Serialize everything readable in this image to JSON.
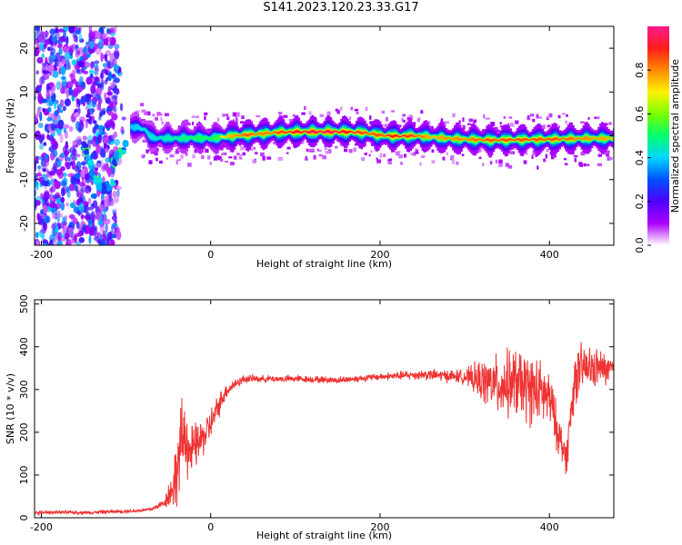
{
  "title": "S141.2023.120.23.33.G17",
  "chart_data": [
    {
      "type": "heatmap",
      "xlabel": "Height of straight line (km)",
      "ylabel": "Frequency (Hz)",
      "xlim": [
        -208,
        476
      ],
      "ylim": [
        -25,
        25
      ],
      "xticks": [
        "-200",
        "0",
        "200",
        "400"
      ],
      "xtick_values": [
        -200,
        0,
        200,
        400
      ],
      "yticks": [
        "-20",
        "-10",
        "0",
        "10",
        "20"
      ],
      "ytick_values": [
        -20,
        -10,
        0,
        10,
        20
      ],
      "colorbar": {
        "label": "Normalized spectral amplitude",
        "range": [
          0,
          1
        ],
        "ticks": [
          "0.0",
          "0.2",
          "0.4",
          "0.6",
          "0.8"
        ],
        "tick_values": [
          0.0,
          0.2,
          0.4,
          0.6,
          0.8
        ],
        "colormap": [
          "#ffffff",
          "#ad00ff",
          "#5000ff",
          "#0050ff",
          "#00d7ff",
          "#00ff6e",
          "#7aff00",
          "#fff200",
          "#ff8a00",
          "#ff1c1c",
          "#ff1a8a"
        ]
      },
      "ridge": {
        "x": [
          -90,
          -80,
          -70,
          -40,
          -20,
          0,
          20,
          40,
          60,
          80,
          100,
          120,
          140,
          160,
          180,
          200,
          220,
          240,
          260,
          280,
          300,
          330,
          360,
          400,
          440,
          476
        ],
        "y": [
          2,
          1.5,
          -0.5,
          -0.6,
          -0.5,
          -0.6,
          -0.1,
          0.2,
          0.5,
          0.8,
          0.9,
          0.9,
          0.9,
          0.9,
          0.7,
          0.1,
          -0.1,
          0,
          -0.3,
          -0.6,
          -0.8,
          -1.0,
          -0.9,
          -0.8,
          -0.6,
          -0.6
        ],
        "amplitude": [
          0.5,
          0.55,
          0.55,
          0.6,
          0.65,
          0.65,
          0.75,
          0.85,
          0.8,
          0.85,
          0.9,
          0.95,
          0.95,
          0.9,
          0.85,
          0.85,
          0.9,
          0.85,
          0.75,
          0.8,
          0.8,
          0.85,
          0.85,
          0.85,
          0.8,
          0.75
        ]
      }
    },
    {
      "type": "line",
      "xlabel": "Height of straight line (km)",
      "ylabel": "SNR (10 * v/v)",
      "xlim": [
        -208,
        476
      ],
      "ylim": [
        0,
        510
      ],
      "xticks": [
        "-200",
        "0",
        "200",
        "400"
      ],
      "xtick_values": [
        -200,
        0,
        200,
        400
      ],
      "yticks": [
        "0",
        "100",
        "200",
        "300",
        "400",
        "500"
      ],
      "ytick_values": [
        0,
        100,
        200,
        300,
        400,
        500
      ],
      "color": "#ee3333",
      "series": [
        {
          "x": [
            -208,
            -180,
            -150,
            -120,
            -90,
            -70,
            -55,
            -45,
            -40,
            -35,
            -30,
            -25,
            -20,
            -15,
            -10,
            -5,
            0,
            5,
            10,
            15,
            20,
            30,
            40,
            60,
            80,
            100,
            150,
            200,
            250,
            300,
            320,
            340,
            360,
            380,
            400,
            410,
            420,
            430,
            440,
            460,
            476
          ],
          "y": [
            12,
            13,
            12,
            14,
            16,
            20,
            35,
            70,
            110,
            170,
            200,
            150,
            160,
            175,
            185,
            200,
            220,
            240,
            265,
            285,
            300,
            315,
            325,
            325,
            325,
            325,
            322,
            330,
            335,
            330,
            320,
            310,
            315,
            300,
            280,
            200,
            140,
            330,
            350,
            350,
            345
          ],
          "spread": [
            5,
            5,
            5,
            5,
            5,
            6,
            12,
            60,
            100,
            120,
            110,
            80,
            70,
            60,
            55,
            50,
            45,
            40,
            35,
            25,
            20,
            15,
            12,
            10,
            10,
            10,
            10,
            10,
            15,
            20,
            60,
            85,
            100,
            100,
            80,
            60,
            50,
            80,
            70,
            50,
            40
          ]
        }
      ]
    }
  ]
}
